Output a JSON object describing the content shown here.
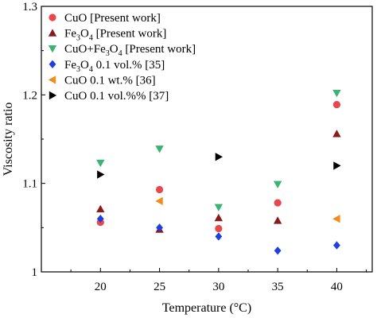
{
  "chart_data": {
    "type": "scatter",
    "xlabel_main": "Temperature (",
    "xlabel_unit": "°C)",
    "ylabel": "Viscosity ratio",
    "xlim": [
      15,
      43
    ],
    "ylim": [
      1.0,
      1.3
    ],
    "x_ticks": [
      20,
      25,
      30,
      35,
      40
    ],
    "y_ticks": [
      1.0,
      1.1,
      1.2,
      1.3
    ],
    "x_tick_labels": [
      "20",
      "25",
      "30",
      "35",
      "40"
    ],
    "y_tick_labels": [
      "1",
      "1.1",
      "1.2",
      "1.3"
    ],
    "legend_position": "top-left",
    "grid": false,
    "series": [
      {
        "name_parts": [
          "CuO [Present work]"
        ],
        "marker": "circle",
        "color": "#e8474c",
        "x": [
          20,
          25,
          30,
          35,
          40
        ],
        "y": [
          1.056,
          1.093,
          1.049,
          1.078,
          1.189
        ]
      },
      {
        "name_parts": [
          "Fe",
          "3",
          "O",
          "4",
          " [Present work]"
        ],
        "marker": "triangle-up",
        "color": "#8b1a1a",
        "x": [
          20,
          25,
          30,
          35,
          40
        ],
        "y": [
          1.071,
          1.048,
          1.061,
          1.058,
          1.156
        ]
      },
      {
        "name_parts": [
          "CuO+Fe",
          "3",
          "O",
          "4",
          " [Present work]"
        ],
        "marker": "triangle-down",
        "color": "#3cb371",
        "x": [
          20,
          25,
          30,
          35,
          40
        ],
        "y": [
          1.123,
          1.139,
          1.073,
          1.099,
          1.202
        ]
      },
      {
        "name_parts": [
          "Fe",
          "3",
          "O",
          "4",
          " 0.1 vol.% [35]"
        ],
        "marker": "diamond",
        "color": "#1f3fe0",
        "x": [
          20,
          25,
          30,
          35,
          40
        ],
        "y": [
          1.06,
          1.05,
          1.04,
          1.024,
          1.03
        ]
      },
      {
        "name_parts": [
          "CuO 0.1 wt.% [36]"
        ],
        "marker": "triangle-left",
        "color": "#f28c1e",
        "x": [
          25,
          40
        ],
        "y": [
          1.08,
          1.06
        ]
      },
      {
        "name_parts": [
          "CuO 0.1 vol.%% [37]"
        ],
        "marker": "triangle-right",
        "color": "#000000",
        "x": [
          20,
          30,
          40
        ],
        "y": [
          1.11,
          1.13,
          1.12
        ]
      }
    ]
  }
}
